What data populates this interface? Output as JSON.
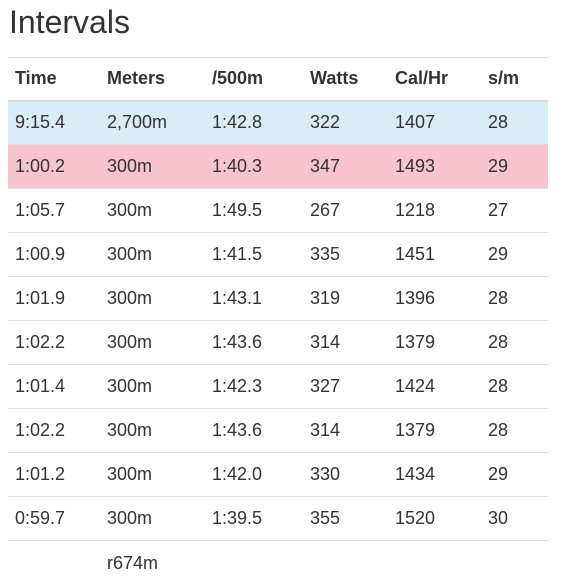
{
  "title": "Intervals",
  "columns": [
    "Time",
    "Meters",
    "/500m",
    "Watts",
    "Cal/Hr",
    "s/m"
  ],
  "rows": [
    {
      "time": "9:15.4",
      "meters": "2,700m",
      "pace": "1:42.8",
      "watts": "322",
      "cal": "1407",
      "spm": "28",
      "style": "summary"
    },
    {
      "time": "1:00.2",
      "meters": "300m",
      "pace": "1:40.3",
      "watts": "347",
      "cal": "1493",
      "spm": "29",
      "style": "highlight"
    },
    {
      "time": "1:05.7",
      "meters": "300m",
      "pace": "1:49.5",
      "watts": "267",
      "cal": "1218",
      "spm": "27"
    },
    {
      "time": "1:00.9",
      "meters": "300m",
      "pace": "1:41.5",
      "watts": "335",
      "cal": "1451",
      "spm": "29"
    },
    {
      "time": "1:01.9",
      "meters": "300m",
      "pace": "1:43.1",
      "watts": "319",
      "cal": "1396",
      "spm": "28"
    },
    {
      "time": "1:02.2",
      "meters": "300m",
      "pace": "1:43.6",
      "watts": "314",
      "cal": "1379",
      "spm": "28"
    },
    {
      "time": "1:01.4",
      "meters": "300m",
      "pace": "1:42.3",
      "watts": "327",
      "cal": "1424",
      "spm": "28"
    },
    {
      "time": "1:02.2",
      "meters": "300m",
      "pace": "1:43.6",
      "watts": "314",
      "cal": "1379",
      "spm": "28"
    },
    {
      "time": "1:01.2",
      "meters": "300m",
      "pace": "1:42.0",
      "watts": "330",
      "cal": "1434",
      "spm": "29"
    },
    {
      "time": "0:59.7",
      "meters": "300m",
      "pace": "1:39.5",
      "watts": "355",
      "cal": "1520",
      "spm": "30"
    }
  ],
  "rest_row": {
    "meters": "r674m"
  },
  "colors": {
    "summary_row_bg": "#d9edf7",
    "highlight_row_bg": "#f9c4cd",
    "border": "#dddddd",
    "text": "#333333"
  }
}
